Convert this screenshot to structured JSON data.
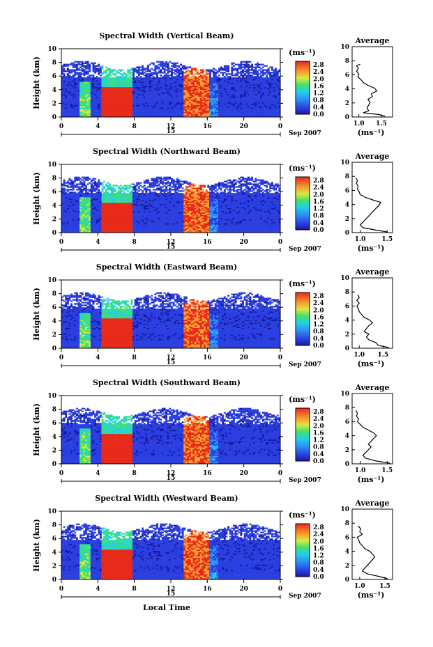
{
  "chart_data": [
    {
      "type": "heatmap",
      "title": "Spectral Width (Vertical Beam)",
      "ylabel": "Height (km)",
      "xlabel": "",
      "xlim": [
        0,
        24
      ],
      "ylim": [
        0,
        10
      ],
      "x_ticks": [
        "0",
        "4",
        "8",
        "12",
        "16",
        "20",
        "0"
      ],
      "y_ticks": [
        "0",
        "2",
        "4",
        "6",
        "8",
        "10"
      ],
      "date_day": "15",
      "date_month": "Sep 2007",
      "colorbar": {
        "unit": "(ms⁻¹)",
        "ticks": [
          "0.0",
          "0.4",
          "0.8",
          "1.2",
          "1.6",
          "2.0",
          "2.4",
          "2.8"
        ],
        "range": [
          0,
          3.0
        ]
      },
      "average_profile": {
        "title": "Average",
        "xlabel": "(ms⁻¹)",
        "x_ticks": [
          "1.0",
          "1.5"
        ],
        "xlim": [
          0.85,
          1.75
        ],
        "ylim": [
          0,
          10
        ],
        "y_ticks": [
          "0",
          "2",
          "4",
          "6",
          "8",
          "10"
        ],
        "values": [
          [
            1.58,
            0.1
          ],
          [
            1.45,
            0.35
          ],
          [
            1.1,
            0.6
          ],
          [
            1.22,
            0.9
          ],
          [
            1.18,
            1.3
          ],
          [
            1.22,
            1.7
          ],
          [
            1.25,
            2.1
          ],
          [
            1.2,
            2.5
          ],
          [
            1.3,
            2.9
          ],
          [
            1.28,
            3.3
          ],
          [
            1.4,
            3.7
          ],
          [
            1.35,
            4.1
          ],
          [
            1.2,
            4.5
          ],
          [
            1.1,
            4.9
          ],
          [
            1.05,
            5.3
          ],
          [
            0.98,
            5.7
          ],
          [
            1.0,
            6.1
          ],
          [
            0.95,
            6.5
          ],
          [
            0.99,
            6.9
          ],
          [
            0.95,
            7.3
          ],
          [
            1.03,
            7.5
          ]
        ]
      }
    },
    {
      "type": "heatmap",
      "title": "Spectral Width (Northward Beam)",
      "ylabel": "Height (km)",
      "xlabel": "",
      "xlim": [
        0,
        24
      ],
      "ylim": [
        0,
        10
      ],
      "x_ticks": [
        "0",
        "4",
        "8",
        "12",
        "16",
        "20",
        "0"
      ],
      "y_ticks": [
        "0",
        "2",
        "4",
        "6",
        "8",
        "10"
      ],
      "date_day": "15",
      "date_month": "Sep 2007",
      "colorbar": {
        "unit": "(ms⁻¹)",
        "ticks": [
          "0.0",
          "0.4",
          "0.8",
          "1.2",
          "1.6",
          "2.0",
          "2.4",
          "2.8"
        ],
        "range": [
          0,
          3.0
        ]
      },
      "average_profile": {
        "title": "Average",
        "xlabel": "(ms⁻¹)",
        "x_ticks": [
          "1.0",
          "1.5"
        ],
        "xlim": [
          0.85,
          1.6
        ],
        "ylim": [
          0,
          10
        ],
        "y_ticks": [
          "0",
          "2",
          "4",
          "6",
          "8",
          "10"
        ],
        "values": [
          [
            1.5,
            0.1
          ],
          [
            1.3,
            0.35
          ],
          [
            1.05,
            0.7
          ],
          [
            1.0,
            1.1
          ],
          [
            1.05,
            1.5
          ],
          [
            1.1,
            1.9
          ],
          [
            1.15,
            2.3
          ],
          [
            1.2,
            2.7
          ],
          [
            1.25,
            3.1
          ],
          [
            1.3,
            3.5
          ],
          [
            1.35,
            3.9
          ],
          [
            1.38,
            4.3
          ],
          [
            1.25,
            4.6
          ],
          [
            1.1,
            5.0
          ],
          [
            1.0,
            5.4
          ],
          [
            0.98,
            5.8
          ],
          [
            0.95,
            6.2
          ],
          [
            0.96,
            6.6
          ],
          [
            0.93,
            7.0
          ],
          [
            0.95,
            7.4
          ],
          [
            0.92,
            7.8
          ]
        ]
      }
    },
    {
      "type": "heatmap",
      "title": "Spectral Width (Eastward Beam)",
      "ylabel": "Height (km)",
      "xlabel": "",
      "xlim": [
        0,
        24
      ],
      "ylim": [
        0,
        10
      ],
      "x_ticks": [
        "0",
        "4",
        "8",
        "12",
        "16",
        "20",
        "0"
      ],
      "y_ticks": [
        "0",
        "2",
        "4",
        "6",
        "8",
        "10"
      ],
      "date_day": "15",
      "date_month": "Sep 2007",
      "colorbar": {
        "unit": "(ms⁻¹)",
        "ticks": [
          "0.0",
          "0.4",
          "0.8",
          "1.2",
          "1.6",
          "2.0",
          "2.4",
          "2.8"
        ],
        "range": [
          0,
          3.0
        ]
      },
      "average_profile": {
        "title": "Average",
        "xlabel": "(ms⁻¹)",
        "x_ticks": [
          "1.0",
          "1.5"
        ],
        "xlim": [
          0.85,
          1.7
        ],
        "ylim": [
          0,
          10
        ],
        "y_ticks": [
          "0",
          "2",
          "4",
          "6",
          "8",
          "10"
        ],
        "values": [
          [
            1.62,
            0.1
          ],
          [
            1.4,
            0.4
          ],
          [
            1.35,
            0.8
          ],
          [
            1.2,
            1.2
          ],
          [
            1.15,
            1.6
          ],
          [
            1.2,
            2.0
          ],
          [
            1.1,
            2.4
          ],
          [
            1.15,
            2.8
          ],
          [
            1.2,
            3.2
          ],
          [
            1.28,
            3.6
          ],
          [
            1.22,
            4.0
          ],
          [
            1.1,
            4.4
          ],
          [
            1.05,
            4.8
          ],
          [
            1.0,
            5.2
          ],
          [
            0.98,
            5.6
          ],
          [
            0.95,
            6.0
          ],
          [
            1.0,
            6.4
          ],
          [
            0.95,
            6.8
          ],
          [
            1.0,
            7.2
          ],
          [
            0.97,
            7.6
          ]
        ]
      }
    },
    {
      "type": "heatmap",
      "title": "Spectral Width (Southward Beam)",
      "ylabel": "Height (km)",
      "xlabel": "",
      "xlim": [
        0,
        24
      ],
      "ylim": [
        0,
        10
      ],
      "x_ticks": [
        "0",
        "4",
        "8",
        "12",
        "16",
        "20",
        "0"
      ],
      "y_ticks": [
        "0",
        "2",
        "4",
        "6",
        "8",
        "10"
      ],
      "date_day": "15",
      "date_month": "Sep 2007",
      "colorbar": {
        "unit": "(ms⁻¹)",
        "ticks": [
          "0.0",
          "0.4",
          "0.8",
          "1.2",
          "1.6",
          "2.0",
          "2.4",
          "2.8"
        ],
        "range": [
          0,
          3.0
        ]
      },
      "average_profile": {
        "title": "Average",
        "xlabel": "(ms⁻¹)",
        "x_ticks": [
          "1.0",
          "1.5"
        ],
        "xlim": [
          0.85,
          1.6
        ],
        "ylim": [
          0,
          10
        ],
        "y_ticks": [
          "0",
          "2",
          "4",
          "6",
          "8",
          "10"
        ],
        "values": [
          [
            1.55,
            0.1
          ],
          [
            1.3,
            0.4
          ],
          [
            1.1,
            0.8
          ],
          [
            1.05,
            1.2
          ],
          [
            1.1,
            1.6
          ],
          [
            1.15,
            2.0
          ],
          [
            1.2,
            2.4
          ],
          [
            1.15,
            2.8
          ],
          [
            1.2,
            3.2
          ],
          [
            1.25,
            3.6
          ],
          [
            1.3,
            4.0
          ],
          [
            1.25,
            4.4
          ],
          [
            1.15,
            4.8
          ],
          [
            1.05,
            5.2
          ],
          [
            1.0,
            5.6
          ],
          [
            0.95,
            6.0
          ],
          [
            0.97,
            6.4
          ],
          [
            0.93,
            6.8
          ],
          [
            0.95,
            7.2
          ],
          [
            0.92,
            7.6
          ]
        ]
      }
    },
    {
      "type": "heatmap",
      "title": "Spectral Width (Westward Beam)",
      "ylabel": "Height (km)",
      "xlabel": "Local Time",
      "xlim": [
        0,
        24
      ],
      "ylim": [
        0,
        10
      ],
      "x_ticks": [
        "0",
        "4",
        "8",
        "12",
        "16",
        "20",
        "0"
      ],
      "y_ticks": [
        "0",
        "2",
        "4",
        "6",
        "8",
        "10"
      ],
      "date_day": "15",
      "date_month": "Sep 2007",
      "colorbar": {
        "unit": "(ms⁻¹)",
        "ticks": [
          "0.0",
          "0.4",
          "0.8",
          "1.2",
          "1.6",
          "2.0",
          "2.4",
          "2.8"
        ],
        "range": [
          0,
          3.0
        ]
      },
      "average_profile": {
        "title": "Average",
        "xlabel": "(ms⁻¹)",
        "x_ticks": [
          "1.0",
          "1.5"
        ],
        "xlim": [
          0.85,
          1.65
        ],
        "ylim": [
          0,
          10
        ],
        "y_ticks": [
          "0",
          "2",
          "4",
          "6",
          "8",
          "10"
        ],
        "values": [
          [
            1.55,
            0.1
          ],
          [
            1.4,
            0.4
          ],
          [
            1.15,
            0.8
          ],
          [
            1.05,
            1.2
          ],
          [
            1.1,
            1.6
          ],
          [
            1.15,
            2.0
          ],
          [
            1.2,
            2.4
          ],
          [
            1.25,
            2.8
          ],
          [
            1.3,
            3.2
          ],
          [
            1.25,
            3.6
          ],
          [
            1.2,
            4.0
          ],
          [
            1.1,
            4.4
          ],
          [
            1.05,
            4.8
          ],
          [
            1.0,
            5.2
          ],
          [
            0.98,
            5.6
          ],
          [
            0.95,
            6.0
          ],
          [
            1.05,
            6.4
          ],
          [
            1.0,
            6.8
          ],
          [
            1.02,
            7.2
          ],
          [
            0.97,
            7.6
          ]
        ]
      }
    }
  ]
}
